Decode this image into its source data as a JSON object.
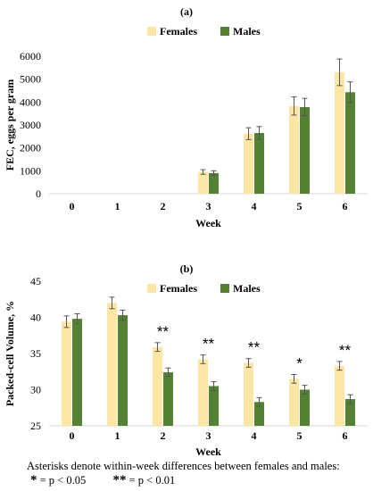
{
  "charts": [
    {
      "panel_label": "(a)",
      "type": "bar",
      "ylabel": "FEC, eggs per gram",
      "xlabel": "Week",
      "ylim": [
        0,
        6000
      ],
      "yticks": [
        "0",
        "1000",
        "2000",
        "3000",
        "4000",
        "5000",
        "6000"
      ],
      "categories": [
        "0",
        "1",
        "2",
        "3",
        "4",
        "5",
        "6"
      ],
      "legend": {
        "placement": "top-center",
        "entries": [
          "Females",
          "Males"
        ]
      },
      "series": [
        {
          "name": "Females",
          "color": "#FCE6A4",
          "values": [
            0,
            0,
            0,
            950,
            2620,
            3830,
            5300
          ],
          "errors": [
            0,
            0,
            0,
            100,
            260,
            400,
            580
          ]
        },
        {
          "name": "Males",
          "color": "#548235",
          "values": [
            0,
            0,
            0,
            900,
            2650,
            3780,
            4430
          ],
          "errors": [
            0,
            0,
            0,
            100,
            280,
            380,
            450
          ]
        }
      ],
      "annotations": [
        "",
        "",
        "",
        "",
        "",
        "",
        ""
      ]
    },
    {
      "panel_label": "(b)",
      "type": "bar",
      "ylabel": "Packed-cell Volume, %",
      "xlabel": "Week",
      "ylim": [
        25,
        45
      ],
      "yticks": [
        "25",
        "30",
        "35",
        "40",
        "45"
      ],
      "categories": [
        "0",
        "1",
        "2",
        "3",
        "4",
        "5",
        "6"
      ],
      "legend": {
        "placement": "top-center",
        "entries": [
          "Females",
          "Males"
        ]
      },
      "series": [
        {
          "name": "Females",
          "color": "#FCE6A4",
          "values": [
            39.4,
            42.0,
            35.9,
            34.2,
            33.7,
            31.5,
            33.3
          ],
          "errors": [
            0.8,
            0.8,
            0.6,
            0.6,
            0.6,
            0.6,
            0.6
          ]
        },
        {
          "name": "Males",
          "color": "#548235",
          "values": [
            39.8,
            40.3,
            32.4,
            30.5,
            28.3,
            30.0,
            28.7
          ],
          "errors": [
            0.7,
            0.7,
            0.6,
            0.6,
            0.6,
            0.6,
            0.6
          ]
        }
      ],
      "annotations": [
        "",
        "",
        "**",
        "**",
        "**",
        "*",
        "**"
      ]
    }
  ],
  "footnote": {
    "line1": "Asterisks denote within-week differences between females and males:",
    "sig1_marker": "*",
    "sig1_text": "= p < 0.05",
    "sig2_marker": "**",
    "sig2_text": "= p < 0.01"
  },
  "colors": {
    "females": "#FCE6A4",
    "males": "#548235",
    "error_bar": "#555555"
  }
}
